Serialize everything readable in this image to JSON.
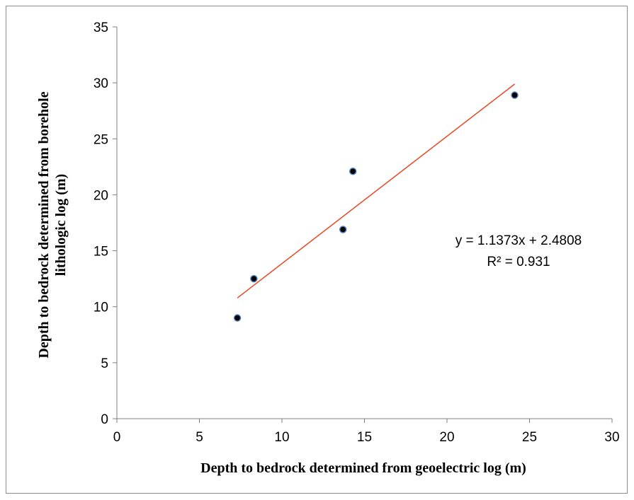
{
  "chart_data": {
    "type": "scatter",
    "title": "",
    "xlabel": "Depth to bedrock determined from geoelectric log (m)",
    "ylabel": "Depth to bedrock determined from borehole lithologic log (m)",
    "ylabel_lines": [
      "Depth to bedrock determined from borehole",
      "lithologic log (m)"
    ],
    "xlim": [
      0,
      30
    ],
    "ylim": [
      0,
      35
    ],
    "x_ticks": [
      "0",
      "5",
      "10",
      "15",
      "20",
      "25",
      "30"
    ],
    "y_ticks": [
      "0",
      "5",
      "10",
      "15",
      "20",
      "25",
      "30",
      "35"
    ],
    "grid": false,
    "legend": "none",
    "series": [
      {
        "points": [
          {
            "x": 7.3,
            "y": 9.0
          },
          {
            "x": 8.3,
            "y": 12.5
          },
          {
            "x": 13.7,
            "y": 16.9
          },
          {
            "x": 14.3,
            "y": 22.1
          },
          {
            "x": 24.1,
            "y": 28.9
          }
        ],
        "marker_fill": "#000000",
        "marker_edge": "#4f81bd"
      }
    ],
    "trendline": {
      "type": "linear",
      "slope": 1.1373,
      "intercept": 2.4808,
      "x_range": [
        7.3,
        24.1
      ],
      "color": "#e8461e",
      "equation": "y = 1.1373x + 2.4808",
      "r_squared": "R² = 0.931"
    }
  }
}
